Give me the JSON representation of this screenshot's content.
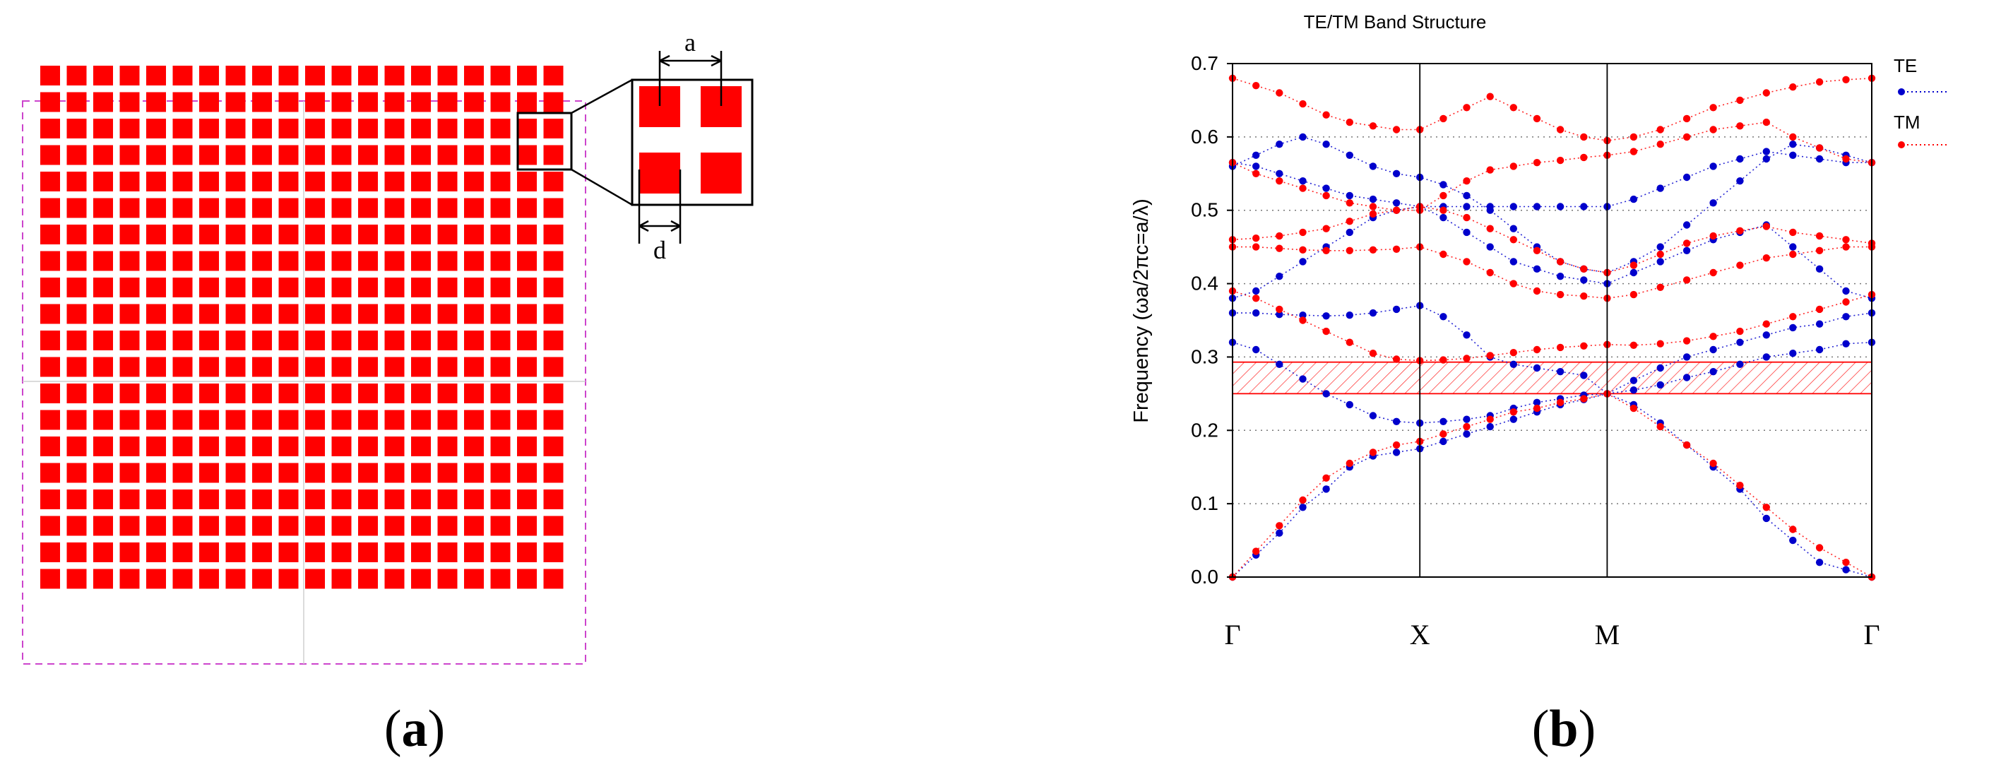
{
  "figure": {
    "panel_a": {
      "label_open": "(",
      "label_letter": "a",
      "label_close": ")",
      "lattice_rows": 20,
      "lattice_cols": 20,
      "rod_color": "#ff0000",
      "frame_color": "#cc44cc",
      "inset_label_a": "a",
      "inset_label_d": "d"
    },
    "panel_b": {
      "label_open": "(",
      "label_letter": "b",
      "label_close": ")"
    }
  },
  "chart_data": {
    "type": "scatter",
    "title": "TE/TM Band Structure",
    "xlabel": "",
    "ylabel": "Frequency (ωa/2πc=a/λ)",
    "ylim": [
      0.0,
      0.7
    ],
    "yticks": [
      "0.0",
      "0.1",
      "0.2",
      "0.3",
      "0.4",
      "0.5",
      "0.6",
      "0.7"
    ],
    "xticks": [
      {
        "label": "Γ",
        "k": 0
      },
      {
        "label": "X",
        "k": 8
      },
      {
        "label": "M",
        "k": 16
      },
      {
        "label": "Γ",
        "k": 27.3
      }
    ],
    "xlim": [
      0,
      27.3
    ],
    "grid": "horizontal dotted",
    "legend_position": "right",
    "photonic_band_gap": {
      "from": 0.25,
      "to": 0.293,
      "color": "#ff0000"
    },
    "colors": {
      "TE": "#0000cc",
      "TM": "#ff0000"
    },
    "series": [
      {
        "name": "TE",
        "color": "#0000cc",
        "bands": [
          {
            "k": [
              0,
              1,
              2,
              3,
              4,
              5,
              6,
              7,
              8,
              9,
              10,
              11,
              12,
              13,
              14,
              15,
              16,
              17.13,
              18.27,
              19.4,
              20.53,
              21.67,
              22.8,
              23.93,
              25.07,
              26.2,
              27.3
            ],
            "f": [
              0,
              0.03,
              0.06,
              0.095,
              0.12,
              0.15,
              0.165,
              0.17,
              0.175,
              0.185,
              0.195,
              0.205,
              0.215,
              0.225,
              0.235,
              0.242,
              0.25,
              0.235,
              0.21,
              0.18,
              0.15,
              0.12,
              0.08,
              0.05,
              0.02,
              0.01,
              0.0
            ]
          },
          {
            "k": [
              0,
              1,
              2,
              3,
              4,
              5,
              6,
              7,
              8,
              9,
              10,
              11,
              12,
              13,
              14,
              15,
              16,
              17.13,
              18.27,
              19.4,
              20.53,
              21.67,
              22.8,
              23.93,
              25.07,
              26.2,
              27.3
            ],
            "f": [
              0.32,
              0.31,
              0.29,
              0.27,
              0.25,
              0.235,
              0.22,
              0.212,
              0.21,
              0.212,
              0.215,
              0.22,
              0.23,
              0.238,
              0.243,
              0.248,
              0.25,
              0.255,
              0.262,
              0.272,
              0.28,
              0.29,
              0.3,
              0.305,
              0.31,
              0.318,
              0.32
            ]
          },
          {
            "k": [
              0,
              1,
              2,
              3,
              4,
              5,
              6,
              7,
              8,
              9,
              10,
              11,
              12,
              13,
              14,
              15,
              16,
              17.13,
              18.27,
              19.4,
              20.53,
              21.67,
              22.8,
              23.93,
              25.07,
              26.2,
              27.3
            ],
            "f": [
              0.36,
              0.36,
              0.358,
              0.357,
              0.356,
              0.357,
              0.36,
              0.365,
              0.37,
              0.355,
              0.33,
              0.3,
              0.29,
              0.285,
              0.28,
              0.275,
              0.25,
              0.268,
              0.285,
              0.3,
              0.31,
              0.32,
              0.33,
              0.34,
              0.345,
              0.355,
              0.36
            ]
          },
          {
            "k": [
              0,
              1,
              2,
              3,
              4,
              5,
              6,
              7,
              8,
              9,
              10,
              11,
              12,
              13,
              14,
              15,
              16,
              17.13,
              18.27,
              19.4,
              20.53,
              21.67,
              22.8,
              23.93,
              25.07,
              26.2,
              27.3
            ],
            "f": [
              0.38,
              0.39,
              0.41,
              0.43,
              0.45,
              0.47,
              0.49,
              0.5,
              0.505,
              0.49,
              0.47,
              0.45,
              0.43,
              0.42,
              0.41,
              0.405,
              0.4,
              0.415,
              0.43,
              0.445,
              0.46,
              0.47,
              0.48,
              0.45,
              0.42,
              0.39,
              0.38
            ]
          },
          {
            "k": [
              0,
              1,
              2,
              3,
              4,
              5,
              6,
              7,
              8,
              9,
              10,
              11,
              12,
              13,
              14,
              15,
              16,
              17.13,
              18.27,
              19.4,
              20.53,
              21.67,
              22.8,
              23.93,
              25.07,
              26.2,
              27.3
            ],
            "f": [
              0.56,
              0.575,
              0.59,
              0.6,
              0.59,
              0.575,
              0.56,
              0.55,
              0.545,
              0.535,
              0.52,
              0.5,
              0.475,
              0.45,
              0.43,
              0.42,
              0.415,
              0.43,
              0.45,
              0.48,
              0.51,
              0.54,
              0.57,
              0.59,
              0.585,
              0.575,
              0.565
            ]
          },
          {
            "k": [
              0,
              1,
              2,
              3,
              4,
              5,
              6,
              7,
              8,
              9,
              10,
              11,
              12,
              13,
              14,
              15,
              16,
              17.13,
              18.27,
              19.4,
              20.53,
              21.67,
              22.8,
              23.93,
              25.07,
              26.2,
              27.3
            ],
            "f": [
              0.565,
              0.56,
              0.55,
              0.54,
              0.53,
              0.52,
              0.515,
              0.51,
              0.505,
              0.505,
              0.505,
              0.505,
              0.505,
              0.505,
              0.505,
              0.505,
              0.505,
              0.515,
              0.53,
              0.545,
              0.56,
              0.57,
              0.58,
              0.575,
              0.57,
              0.565,
              0.565
            ]
          }
        ]
      },
      {
        "name": "TM",
        "color": "#ff0000",
        "bands": [
          {
            "k": [
              0,
              1,
              2,
              3,
              4,
              5,
              6,
              7,
              8,
              9,
              10,
              11,
              12,
              13,
              14,
              15,
              16,
              17.13,
              18.27,
              19.4,
              20.53,
              21.67,
              22.8,
              23.93,
              25.07,
              26.2,
              27.3
            ],
            "f": [
              0,
              0.035,
              0.07,
              0.105,
              0.135,
              0.155,
              0.17,
              0.18,
              0.185,
              0.195,
              0.205,
              0.215,
              0.225,
              0.23,
              0.238,
              0.243,
              0.25,
              0.23,
              0.205,
              0.18,
              0.155,
              0.125,
              0.095,
              0.065,
              0.04,
              0.02,
              0.0
            ]
          },
          {
            "k": [
              0,
              1,
              2,
              3,
              4,
              5,
              6,
              7,
              8,
              9,
              10,
              11,
              12,
              13,
              14,
              15,
              16,
              17.13,
              18.27,
              19.4,
              20.53,
              21.67,
              22.8,
              23.93,
              25.07,
              26.2,
              27.3
            ],
            "f": [
              0.39,
              0.38,
              0.365,
              0.35,
              0.335,
              0.32,
              0.305,
              0.297,
              0.295,
              0.296,
              0.298,
              0.302,
              0.306,
              0.31,
              0.313,
              0.315,
              0.317,
              0.316,
              0.318,
              0.322,
              0.328,
              0.335,
              0.345,
              0.355,
              0.365,
              0.375,
              0.385
            ]
          },
          {
            "k": [
              0,
              1,
              2,
              3,
              4,
              5,
              6,
              7,
              8,
              9,
              10,
              11,
              12,
              13,
              14,
              15,
              16,
              17.13,
              18.27,
              19.4,
              20.53,
              21.67,
              22.8,
              23.93,
              25.07,
              26.2,
              27.3
            ],
            "f": [
              0.45,
              0.45,
              0.448,
              0.446,
              0.445,
              0.445,
              0.446,
              0.447,
              0.45,
              0.44,
              0.43,
              0.415,
              0.4,
              0.39,
              0.385,
              0.383,
              0.38,
              0.385,
              0.395,
              0.405,
              0.415,
              0.425,
              0.435,
              0.44,
              0.445,
              0.45,
              0.45
            ]
          },
          {
            "k": [
              0,
              1,
              2,
              3,
              4,
              5,
              6,
              7,
              8,
              9,
              10,
              11,
              12,
              13,
              14,
              15,
              16,
              17.13,
              18.27,
              19.4,
              20.53,
              21.67,
              22.8,
              23.93,
              25.07,
              26.2,
              27.3
            ],
            "f": [
              0.46,
              0.462,
              0.465,
              0.47,
              0.475,
              0.485,
              0.495,
              0.5,
              0.505,
              0.5,
              0.49,
              0.475,
              0.46,
              0.445,
              0.43,
              0.42,
              0.415,
              0.425,
              0.44,
              0.455,
              0.465,
              0.472,
              0.478,
              0.47,
              0.465,
              0.46,
              0.455
            ]
          },
          {
            "k": [
              0,
              1,
              2,
              3,
              4,
              5,
              6,
              7,
              8,
              9,
              10,
              11,
              12,
              13,
              14,
              15,
              16,
              17.13,
              18.27,
              19.4,
              20.53,
              21.67,
              22.8,
              23.93,
              25.07,
              26.2,
              27.3
            ],
            "f": [
              0.565,
              0.55,
              0.54,
              0.53,
              0.52,
              0.51,
              0.505,
              0.5,
              0.5,
              0.52,
              0.54,
              0.555,
              0.56,
              0.565,
              0.568,
              0.572,
              0.575,
              0.58,
              0.59,
              0.6,
              0.61,
              0.615,
              0.62,
              0.6,
              0.585,
              0.57,
              0.565
            ]
          },
          {
            "k": [
              0,
              1,
              2,
              3,
              4,
              5,
              6,
              7,
              8,
              9,
              10,
              11,
              12,
              13,
              14,
              15,
              16,
              17.13,
              18.27,
              19.4,
              20.53,
              21.67,
              22.8,
              23.93,
              25.07,
              26.2,
              27.3
            ],
            "f": [
              0.68,
              0.67,
              0.66,
              0.645,
              0.63,
              0.62,
              0.615,
              0.61,
              0.61,
              0.625,
              0.64,
              0.655,
              0.64,
              0.625,
              0.61,
              0.6,
              0.595,
              0.6,
              0.61,
              0.625,
              0.64,
              0.65,
              0.66,
              0.668,
              0.675,
              0.678,
              0.68
            ]
          }
        ]
      }
    ]
  }
}
